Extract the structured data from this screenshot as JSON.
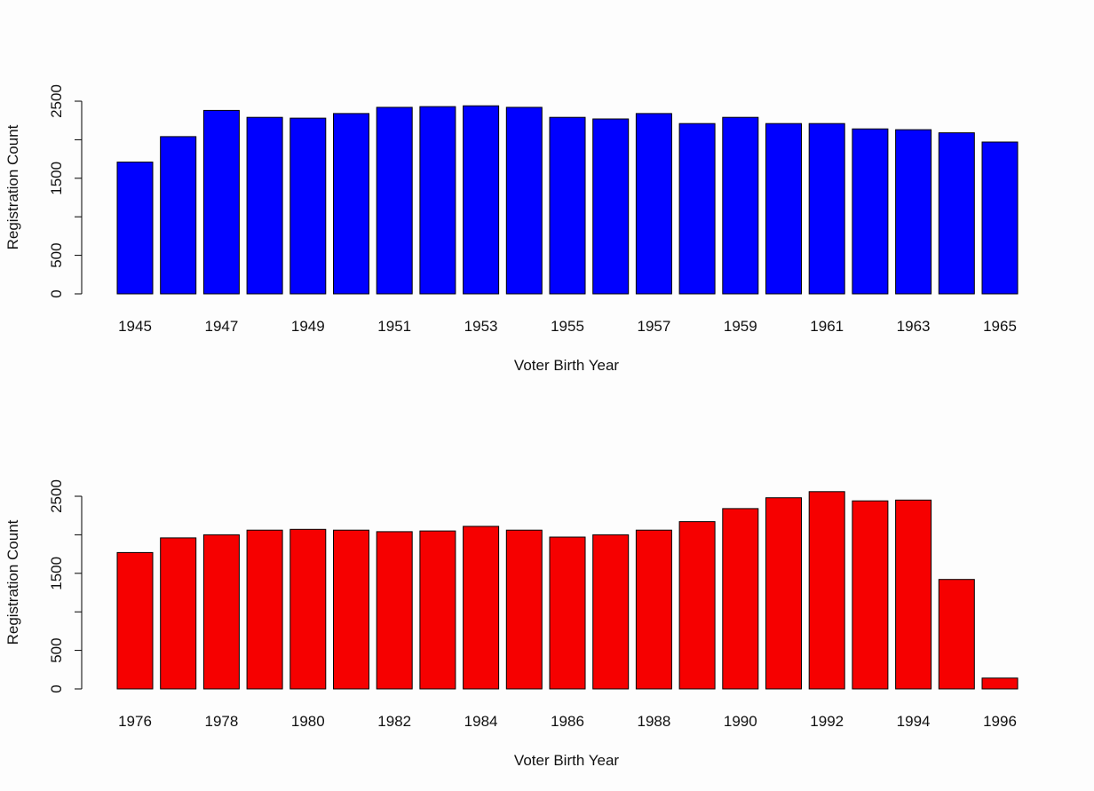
{
  "chart_data": [
    {
      "type": "bar",
      "title": "",
      "xlabel": "Voter Birth Year",
      "ylabel": "Registration Count",
      "color": "#0000ff",
      "categories": [
        "1945",
        "1946",
        "1947",
        "1948",
        "1949",
        "1950",
        "1951",
        "1952",
        "1953",
        "1954",
        "1955",
        "1956",
        "1957",
        "1958",
        "1959",
        "1960",
        "1961",
        "1962",
        "1963",
        "1964",
        "1965"
      ],
      "x_tick_labels": [
        "1945",
        "1947",
        "1949",
        "1951",
        "1953",
        "1955",
        "1957",
        "1959",
        "1961",
        "1963",
        "1965"
      ],
      "values": [
        1710,
        2040,
        2380,
        2290,
        2280,
        2340,
        2420,
        2430,
        2440,
        2420,
        2290,
        2270,
        2340,
        2210,
        2290,
        2210,
        2210,
        2140,
        2130,
        2090,
        1970
      ],
      "ylim": [
        0,
        2500
      ],
      "y_ticks": [
        "0",
        "500",
        "1500",
        "2500"
      ],
      "grid": false
    },
    {
      "type": "bar",
      "title": "",
      "xlabel": "Voter Birth Year",
      "ylabel": "Registration Count",
      "color": "#f60000",
      "categories": [
        "1976",
        "1977",
        "1978",
        "1979",
        "1980",
        "1981",
        "1982",
        "1983",
        "1984",
        "1985",
        "1986",
        "1987",
        "1988",
        "1989",
        "1990",
        "1991",
        "1992",
        "1993",
        "1994",
        "1995",
        "1996"
      ],
      "x_tick_labels": [
        "1976",
        "1978",
        "1980",
        "1982",
        "1984",
        "1986",
        "1988",
        "1990",
        "1992",
        "1994",
        "1996"
      ],
      "values": [
        1770,
        1960,
        2000,
        2060,
        2070,
        2060,
        2040,
        2050,
        2110,
        2060,
        1970,
        2000,
        2060,
        2170,
        2340,
        2480,
        2560,
        2440,
        2450,
        1420,
        140
      ],
      "ylim": [
        0,
        2500
      ],
      "y_ticks": [
        "0",
        "500",
        "1500",
        "2500"
      ],
      "grid": false
    }
  ]
}
